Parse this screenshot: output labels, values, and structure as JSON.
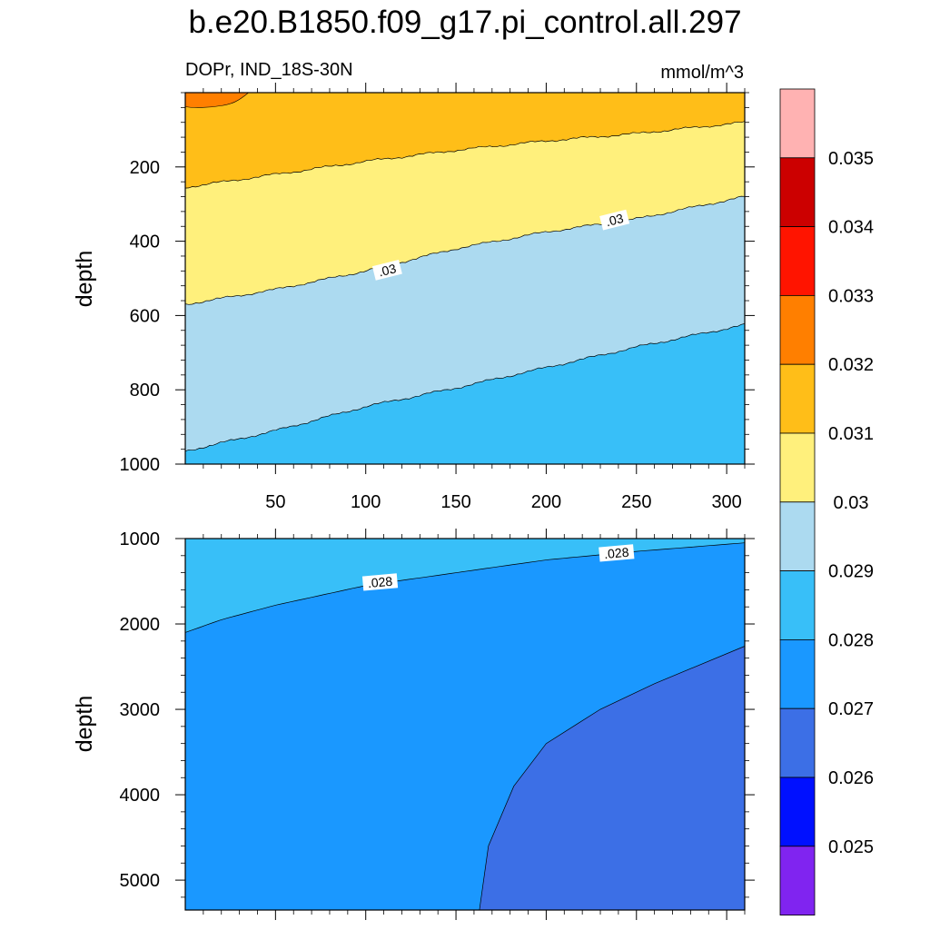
{
  "title": "b.e20.B1850.f09_g17.pi_control.all.297",
  "colors": {
    "below_0.025": "#8024f0",
    "0.025-0.026": "#0010ff",
    "0.026-0.027": "#3c6fe6",
    "0.027-0.028": "#1a98ff",
    "0.028-0.029": "#38bff8",
    "0.029-0.030": "#acdaf0",
    "0.030-0.031": "#fff07c",
    "0.031-0.032": "#ffbe18",
    "0.032-0.033": "#ff7f00",
    "0.033-0.034": "#ff1400",
    "0.034-0.035": "#cc0000",
    "above_0.035": "#ffb2b2"
  },
  "chart_data": [
    {
      "type": "heatmap",
      "subtype": "filled-contour",
      "panel": "upper",
      "left_label": "DOPr, IND_18S-30N",
      "right_label": "mmol/m^3",
      "ylabel": "depth",
      "xlabel": "",
      "xlim": [
        0,
        310
      ],
      "ylim": [
        1000,
        0
      ],
      "xticks": [
        50,
        100,
        150,
        200,
        250,
        300
      ],
      "yticks": [
        200,
        400,
        600,
        800,
        1000
      ],
      "contours": [
        {
          "level": 0.029,
          "x": [
            0,
            50,
            100,
            150,
            200,
            250,
            310
          ],
          "depth": [
            965,
            910,
            845,
            795,
            740,
            685,
            625
          ]
        },
        {
          "level": 0.03,
          "x": [
            0,
            50,
            100,
            150,
            200,
            250,
            310
          ],
          "depth": [
            570,
            530,
            480,
            420,
            375,
            340,
            280
          ],
          "labels": [
            {
              "text": ".03",
              "x": 112,
              "depth": 480
            },
            {
              "text": ".03",
              "x": 238,
              "depth": 345
            }
          ]
        },
        {
          "level": 0.031,
          "x": [
            0,
            50,
            100,
            150,
            200,
            250,
            310
          ],
          "depth": [
            255,
            220,
            185,
            155,
            130,
            110,
            80
          ]
        },
        {
          "level": 0.032,
          "region": "top-left patch",
          "x": [
            0,
            25
          ],
          "depth": [
            0,
            40
          ]
        }
      ],
      "contour_labels": [
        ".03",
        ".03"
      ]
    },
    {
      "type": "heatmap",
      "subtype": "filled-contour",
      "panel": "lower",
      "ylabel": "depth",
      "xlabel": "",
      "xlim": [
        0,
        310
      ],
      "ylim": [
        5350,
        1000
      ],
      "xticks": [
        50,
        100,
        150,
        200,
        250,
        300
      ],
      "yticks": [
        1000,
        2000,
        3000,
        4000,
        5000
      ],
      "contours": [
        {
          "level": 0.028,
          "x": [
            0,
            20,
            50,
            100,
            150,
            200,
            250,
            310
          ],
          "depth": [
            2100,
            1950,
            1780,
            1550,
            1400,
            1250,
            1150,
            1050
          ],
          "labels": [
            {
              "text": ".028",
              "x": 108,
              "depth": 1520
            },
            {
              "text": ".028",
              "x": 239,
              "depth": 1180
            }
          ]
        },
        {
          "level": 0.027,
          "x": [
            163,
            168,
            182,
            200,
            230,
            260,
            310
          ],
          "depth": [
            5350,
            4600,
            3900,
            3400,
            3000,
            2700,
            2260
          ]
        }
      ],
      "contour_labels": [
        ".028",
        ".028"
      ]
    }
  ],
  "colorbar": {
    "labels": [
      "0.025",
      "0.026",
      "0.027",
      "0.028",
      "0.029",
      "0.03",
      "0.031",
      "0.032",
      "0.033",
      "0.034",
      "0.035"
    ]
  }
}
